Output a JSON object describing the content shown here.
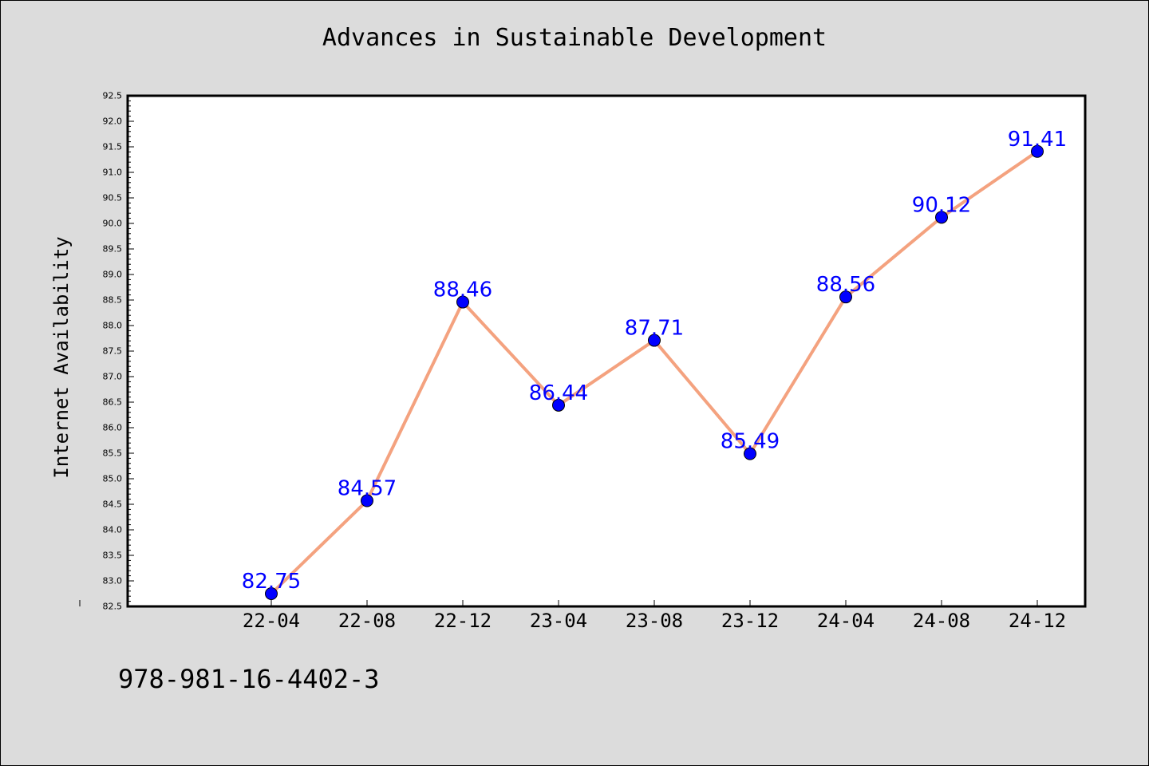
{
  "chart_data": {
    "type": "line",
    "title": "Advances in Sustainable Development",
    "xlabel": "",
    "ylabel": "Internet Availability",
    "categories": [
      "22-04",
      "22-08",
      "22-12",
      "23-04",
      "23-08",
      "23-12",
      "24-04",
      "24-08",
      "24-12"
    ],
    "values": [
      82.75,
      84.57,
      88.46,
      86.44,
      87.71,
      85.49,
      88.56,
      90.12,
      91.41
    ],
    "ylim": [
      82.5,
      92.5
    ],
    "ytick_step": 0.5,
    "grid": false,
    "legend": "none",
    "line_color": "#f4a27f",
    "marker_color": "#0000ff",
    "label_color": "#0000ff",
    "plot_background": "#ffffff",
    "figure_background": "#dcdcdc"
  },
  "footer": {
    "text": "978-981-16-4402-3"
  }
}
